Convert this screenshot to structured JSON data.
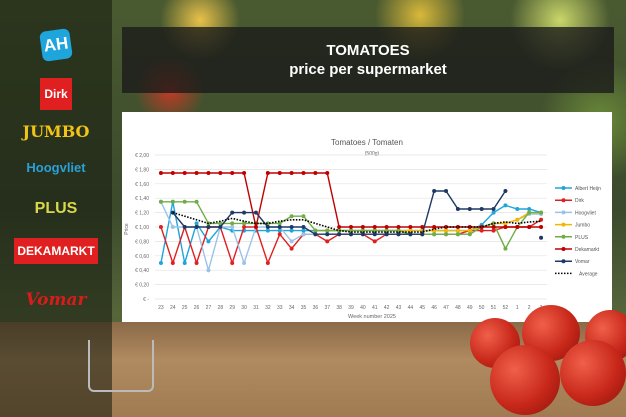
{
  "header": {
    "title": "TOMATOES",
    "subtitle": "price per supermarket"
  },
  "logos": [
    "AH",
    "Dirk",
    "JUMBO",
    "Hoogvliet",
    "PLUS",
    "DEKAMARKT",
    "Vomar"
  ],
  "chart_data": {
    "type": "line",
    "title": "Tomatoes / Tomaten",
    "subtitle": "(500g)",
    "xlabel": "Week number 2025",
    "ylabel": "Price",
    "ylim": [
      0,
      2.0
    ],
    "yticks": [
      "€ -",
      "€ 0,20",
      "€ 0,40",
      "€ 0,60",
      "€ 0,80",
      "€ 1,00",
      "€ 1,20",
      "€ 1,40",
      "€ 1,60",
      "€ 1,80",
      "€ 2,00"
    ],
    "grid": true,
    "legend": "right",
    "categories": [
      "23",
      "24",
      "25",
      "26",
      "27",
      "28",
      "29",
      "30",
      "31",
      "32",
      "33",
      "34",
      "35",
      "36",
      "37",
      "38",
      "39",
      "40",
      "41",
      "42",
      "43",
      "44",
      "45",
      "46",
      "47",
      "48",
      "49",
      "50",
      "51",
      "52",
      "1",
      "2",
      "3"
    ],
    "series": [
      {
        "name": "Albert Heijn",
        "color": "#1ea5dc",
        "values": [
          0.5,
          1.35,
          0.5,
          1.05,
          0.8,
          1.0,
          0.95,
          0.95,
          0.95,
          0.95,
          0.95,
          0.95,
          0.95,
          0.95,
          0.95,
          0.95,
          0.95,
          0.95,
          0.95,
          0.95,
          0.95,
          0.95,
          0.95,
          0.95,
          0.95,
          0.95,
          0.95,
          1.03,
          1.2,
          1.3,
          1.25,
          1.25,
          1.2
        ]
      },
      {
        "name": "Dirk",
        "color": "#e02020",
        "values": [
          1.0,
          0.5,
          1.0,
          0.5,
          1.0,
          1.0,
          0.5,
          1.0,
          1.0,
          0.5,
          0.9,
          0.7,
          0.9,
          0.9,
          0.8,
          0.9,
          0.9,
          0.9,
          0.8,
          0.9,
          0.9,
          0.9,
          0.9,
          0.9,
          0.9,
          0.9,
          0.95,
          0.95,
          0.95,
          1.0,
          1.0,
          1.0,
          1.1
        ]
      },
      {
        "name": "Hoogvliet",
        "color": "#9cc3e6",
        "values": [
          1.35,
          1.0,
          1.0,
          1.0,
          0.4,
          1.0,
          1.0,
          0.5,
          1.0,
          1.0,
          1.0,
          0.8,
          0.9,
          0.9,
          0.9,
          0.9,
          0.9,
          0.9,
          0.9,
          0.9,
          0.9,
          0.9,
          0.9,
          0.9,
          0.9,
          0.9,
          0.9,
          1.0,
          1.05,
          1.05,
          1.1,
          1.18,
          1.18
        ]
      },
      {
        "name": "Jumbo",
        "color": "#f2b800",
        "values": [
          null,
          null,
          null,
          null,
          null,
          null,
          null,
          null,
          null,
          null,
          null,
          null,
          null,
          0.95,
          0.95,
          0.95,
          0.95,
          0.95,
          0.95,
          0.95,
          0.95,
          0.95,
          0.95,
          0.95,
          0.95,
          0.95,
          0.95,
          1.0,
          1.05,
          1.05,
          1.1,
          1.2,
          1.2
        ]
      },
      {
        "name": "PLUS",
        "color": "#70ad47",
        "values": [
          1.35,
          1.35,
          1.35,
          1.35,
          1.05,
          1.05,
          1.05,
          1.05,
          1.05,
          1.05,
          1.05,
          1.15,
          1.15,
          0.95,
          0.95,
          0.95,
          0.95,
          0.95,
          0.95,
          0.95,
          0.95,
          0.9,
          0.9,
          0.9,
          0.9,
          0.9,
          0.9,
          1.0,
          1.05,
          0.7,
          1.0,
          1.2,
          1.2
        ]
      },
      {
        "name": "Dekamarkt",
        "color": "#c00000",
        "values": [
          1.75,
          1.75,
          1.75,
          1.75,
          1.75,
          1.75,
          1.75,
          1.75,
          1.0,
          1.75,
          1.75,
          1.75,
          1.75,
          1.75,
          1.75,
          1.0,
          1.0,
          1.0,
          1.0,
          1.0,
          1.0,
          1.0,
          1.0,
          1.0,
          1.0,
          1.0,
          1.0,
          1.0,
          1.0,
          1.0,
          1.0,
          1.0,
          1.0
        ]
      },
      {
        "name": "Vomar",
        "color": "#1f3864",
        "values": [
          null,
          1.2,
          1.0,
          1.0,
          1.0,
          1.0,
          1.2,
          1.2,
          1.2,
          1.0,
          1.0,
          1.0,
          1.0,
          0.9,
          0.9,
          0.9,
          0.9,
          0.9,
          0.9,
          0.9,
          0.9,
          0.9,
          0.9,
          1.5,
          1.5,
          1.25,
          1.25,
          1.25,
          1.25,
          1.5,
          null,
          null,
          0.85
        ]
      },
      {
        "name": "Average",
        "color": "#000000",
        "dashed": true,
        "values": [
          null,
          1.2,
          1.15,
          1.1,
          1.05,
          1.08,
          1.12,
          1.08,
          1.05,
          1.05,
          1.08,
          1.1,
          1.1,
          1.05,
          1.0,
          0.95,
          0.93,
          0.93,
          0.93,
          0.93,
          0.93,
          0.93,
          0.93,
          0.97,
          1.0,
          1.0,
          1.0,
          1.0,
          1.05,
          1.07,
          1.05,
          1.07,
          1.08
        ]
      }
    ]
  }
}
